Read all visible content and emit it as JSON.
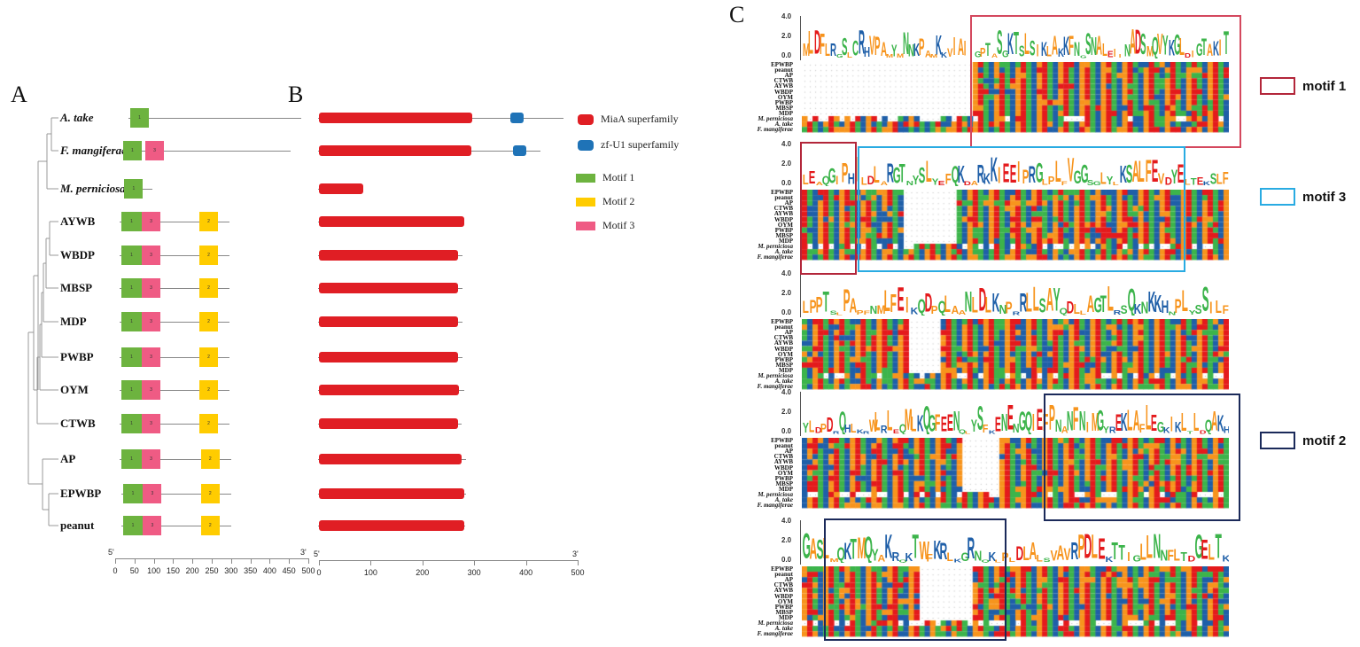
{
  "panels": {
    "a": "A",
    "b": "B",
    "c": "C"
  },
  "taxa": [
    {
      "name": "A. take",
      "italic": true,
      "line_end": 482,
      "motifs": [
        {
          "id": "1",
          "start": 39,
          "end": 87
        }
      ],
      "domains": [
        {
          "type": "MiaA",
          "start": 0,
          "end": 296
        },
        {
          "type": "zf-U1",
          "start": 370,
          "end": 395
        }
      ],
      "protein_length": 472
    },
    {
      "name": "F. mangiferae",
      "italic": true,
      "line_end": 455,
      "motifs": [
        {
          "id": "1",
          "start": 20,
          "end": 69
        },
        {
          "id": "3",
          "start": 78,
          "end": 126
        }
      ],
      "domains": [
        {
          "type": "MiaA",
          "start": 0,
          "end": 294
        },
        {
          "type": "zf-U1",
          "start": 375,
          "end": 400
        }
      ],
      "protein_length": 428
    },
    {
      "name": "M. perniciosa",
      "italic": true,
      "line_end": 97,
      "motifs": [
        {
          "id": "1",
          "start": 24,
          "end": 72
        }
      ],
      "domains": [
        {
          "type": "MiaA",
          "start": 0,
          "end": 86
        }
      ],
      "protein_length": 86
    },
    {
      "name": "AYWB",
      "italic": false,
      "line_end": 295,
      "motifs": [
        {
          "id": "1",
          "start": 16,
          "end": 69
        },
        {
          "id": "3",
          "start": 69,
          "end": 117
        },
        {
          "id": "2",
          "start": 218,
          "end": 266
        }
      ],
      "domains": [
        {
          "type": "MiaA",
          "start": 0,
          "end": 280
        }
      ],
      "protein_length": 280
    },
    {
      "name": "WBDP",
      "italic": false,
      "line_end": 295,
      "motifs": [
        {
          "id": "1",
          "start": 16,
          "end": 69
        },
        {
          "id": "3",
          "start": 69,
          "end": 117
        },
        {
          "id": "2",
          "start": 218,
          "end": 266
        }
      ],
      "domains": [
        {
          "type": "MiaA",
          "start": 0,
          "end": 268
        }
      ],
      "protein_length": 278
    },
    {
      "name": "MBSP",
      "italic": false,
      "line_end": 295,
      "motifs": [
        {
          "id": "1",
          "start": 16,
          "end": 69
        },
        {
          "id": "3",
          "start": 69,
          "end": 117
        },
        {
          "id": "2",
          "start": 218,
          "end": 266
        }
      ],
      "domains": [
        {
          "type": "MiaA",
          "start": 0,
          "end": 268
        }
      ],
      "protein_length": 278
    },
    {
      "name": "MDP",
      "italic": false,
      "line_end": 295,
      "motifs": [
        {
          "id": "1",
          "start": 16,
          "end": 69
        },
        {
          "id": "3",
          "start": 69,
          "end": 117
        },
        {
          "id": "2",
          "start": 218,
          "end": 266
        }
      ],
      "domains": [
        {
          "type": "MiaA",
          "start": 0,
          "end": 268
        }
      ],
      "protein_length": 278
    },
    {
      "name": "PWBP",
      "italic": false,
      "line_end": 295,
      "motifs": [
        {
          "id": "1",
          "start": 16,
          "end": 69
        },
        {
          "id": "3",
          "start": 69,
          "end": 117
        },
        {
          "id": "2",
          "start": 218,
          "end": 266
        }
      ],
      "domains": [
        {
          "type": "MiaA",
          "start": 0,
          "end": 268
        }
      ],
      "protein_length": 278
    },
    {
      "name": "OYM",
      "italic": false,
      "line_end": 295,
      "motifs": [
        {
          "id": "1",
          "start": 16,
          "end": 69
        },
        {
          "id": "3",
          "start": 69,
          "end": 117
        },
        {
          "id": "2",
          "start": 218,
          "end": 266
        }
      ],
      "domains": [
        {
          "type": "MiaA",
          "start": 0,
          "end": 270
        }
      ],
      "protein_length": 280
    },
    {
      "name": "CTWB",
      "italic": false,
      "line_end": 295,
      "motifs": [
        {
          "id": "1",
          "start": 16,
          "end": 69
        },
        {
          "id": "3",
          "start": 69,
          "end": 117
        },
        {
          "id": "2",
          "start": 218,
          "end": 266
        }
      ],
      "domains": [
        {
          "type": "MiaA",
          "start": 0,
          "end": 268
        }
      ],
      "protein_length": 276
    },
    {
      "name": "AP",
      "italic": false,
      "line_end": 300,
      "motifs": [
        {
          "id": "1",
          "start": 16,
          "end": 69
        },
        {
          "id": "3",
          "start": 69,
          "end": 117
        },
        {
          "id": "2",
          "start": 222,
          "end": 270
        }
      ],
      "domains": [
        {
          "type": "MiaA",
          "start": 0,
          "end": 276
        }
      ],
      "protein_length": 285
    },
    {
      "name": "EPWBP",
      "italic": false,
      "line_end": 300,
      "motifs": [
        {
          "id": "1",
          "start": 20,
          "end": 72
        },
        {
          "id": "3",
          "start": 72,
          "end": 120
        },
        {
          "id": "2",
          "start": 222,
          "end": 270
        }
      ],
      "domains": [
        {
          "type": "MiaA",
          "start": 0,
          "end": 280
        }
      ],
      "protein_length": 285
    },
    {
      "name": "peanut",
      "italic": false,
      "line_end": 300,
      "motifs": [
        {
          "id": "1",
          "start": 20,
          "end": 72
        },
        {
          "id": "3",
          "start": 72,
          "end": 120
        },
        {
          "id": "2",
          "start": 222,
          "end": 270
        }
      ],
      "domains": [
        {
          "type": "MiaA",
          "start": 0,
          "end": 280
        }
      ],
      "protein_length": 283
    }
  ],
  "axis_a": {
    "ticks": [
      "0",
      "50",
      "100",
      "150",
      "200",
      "250",
      "300",
      "350",
      "400",
      "450",
      "500"
    ],
    "five": "5'",
    "three": "3'"
  },
  "axis_b": {
    "ticks": [
      "0",
      "100",
      "200",
      "300",
      "400",
      "500"
    ],
    "five": "5'",
    "three": "3'"
  },
  "legend_b": [
    {
      "label": "MiaA superfamily",
      "color": "#e01e24"
    },
    {
      "label": "zf-U1 superfamily",
      "color": "#1f73b7"
    }
  ],
  "legend_motifs": [
    {
      "label": "Motif 1",
      "color": "#6db33f"
    },
    {
      "label": "Motif 2",
      "color": "#ffcc00"
    },
    {
      "label": "Motif 3",
      "color": "#ef5b84"
    }
  ],
  "alignment": {
    "rows": [
      "EPWBP",
      "peanut",
      "AP",
      "CTWB",
      "AYWB",
      "WBDP",
      "OYM",
      "PWBP",
      "MBSP",
      "MDP",
      "M. perniciosa",
      "A. take",
      "F. mangiferae"
    ],
    "y_ticks": [
      "4.0",
      "2.0",
      "0.0"
    ],
    "blocks": [
      {
        "consensus": "MLDFLRGSLCRHVPAMYMNNKPAMKKVIAIIGPTASGKTSLSIKLAKKFNGSNALEIINADSMQVYKGLDIGTAKIT"
      },
      {
        "consensus": "LEAQGIPHILDLARGTNYSLYEFQKDARKKIEEIPRGLPLFVGGSGLYLKSALFEVDYELTEKSLF"
      },
      {
        "consensus": "LPPTSLPAPFNMLFEIKQDPQLAANLDLKNPRRLLSAYQDLLAGTLRSQKNKKHNPLYSSILF"
      },
      {
        "consensus": "YLDPDRQHLKRWLRLEQMLKQGFEENQLYSFKENENGQIEFPNANFNIMGYREKLAFLEGKIKLTLDQAKH"
      },
      {
        "consensus": "GASLMQKTMQYAKRQKTWFKRLKGRNQKLPLDLALSVAVRPDLEKTTIGLLNNFLTDGELTK"
      }
    ]
  },
  "motif_boxes": [
    {
      "label": "motif 1",
      "color": "#c0283c"
    },
    {
      "label": "motif 3",
      "color": "#29abe2"
    },
    {
      "label": "motif 2",
      "color": "#1b2a5a"
    }
  ]
}
